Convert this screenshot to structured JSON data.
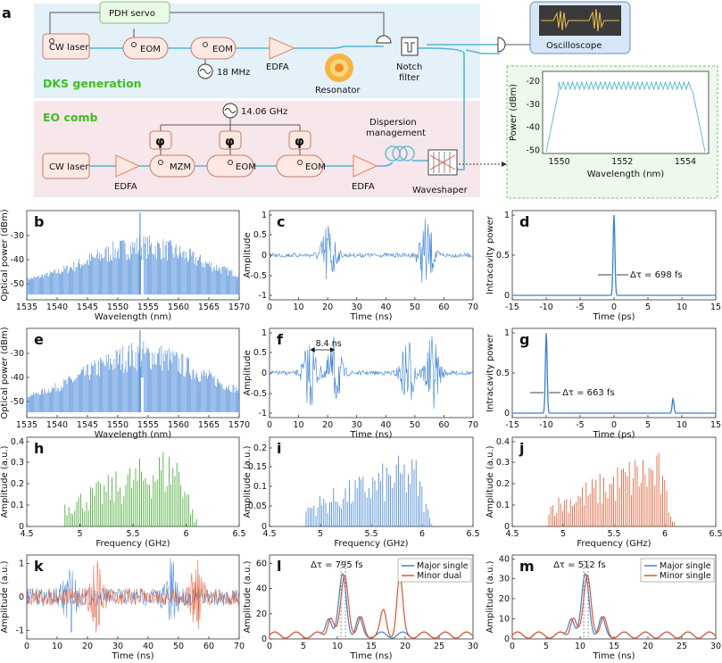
{
  "figure": {
    "panel_a": {
      "letter": "a",
      "dks": {
        "title": "DKS generation",
        "pdh_servo": "PDH servo",
        "cw_laser": "CW laser",
        "eom1": "EOM",
        "eom2": "EOM",
        "rf_freq": "18 MHz",
        "edfa": "EDFA",
        "resonator": "Resonator",
        "notch_filter_1": "Notch",
        "notch_filter_2": "filter",
        "oscilloscope": "Oscilloscope"
      },
      "eo": {
        "title": "EO comb",
        "rf_freq": "14.06 GHz",
        "cw_laser": "CW laser",
        "edfa1": "EDFA",
        "mzm": "MZM",
        "eom1": "EOM",
        "eom2": "EOM",
        "edfa2": "EDFA",
        "phase_symbol": "φ",
        "dispersion_1": "Dispersion",
        "dispersion_2": "management",
        "waveshaper": "Waveshaper"
      },
      "inset": {
        "ylabel": "Power (dBm)",
        "xlabel": "Wavelength (nm)",
        "yticks": [
          "-20",
          "-30",
          "-40",
          "-50"
        ],
        "xticks": [
          "1550",
          "1552",
          "1554"
        ]
      }
    },
    "panels": {
      "b": {
        "letter": "b",
        "ylabel": "Optical power (dBm)",
        "xlabel": "Wavelength (nm)",
        "xticks": [
          "1535",
          "1540",
          "1545",
          "1550",
          "1555",
          "1560",
          "1565",
          "1570"
        ],
        "yticks": [
          "-30",
          "-40",
          "-50"
        ]
      },
      "c": {
        "letter": "c",
        "ylabel": "Amplitude",
        "xlabel": "Time (ns)",
        "xticks": [
          "0",
          "10",
          "20",
          "30",
          "40",
          "50",
          "60",
          "70"
        ],
        "yticks": [
          "1",
          "0.5",
          "0",
          "-0.5",
          "-1"
        ]
      },
      "d": {
        "letter": "d",
        "ylabel": "Intracavity power",
        "xlabel": "Time (ps)",
        "xticks": [
          "-15",
          "-10",
          "-5",
          "0",
          "5",
          "10",
          "15"
        ],
        "yticks": [
          "1",
          "0.5",
          "0"
        ],
        "annotation": "Δτ = 698 fs"
      },
      "e": {
        "letter": "e",
        "ylabel": "Optical power (dBm)",
        "xlabel": "Wavelength (nm)",
        "xticks": [
          "1535",
          "1540",
          "1545",
          "1550",
          "1555",
          "1560",
          "1565",
          "1570"
        ],
        "yticks": [
          "-30",
          "-40",
          "-50"
        ]
      },
      "f": {
        "letter": "f",
        "ylabel": "Amplitude",
        "xlabel": "Time (ns)",
        "xticks": [
          "0",
          "10",
          "20",
          "30",
          "40",
          "50",
          "60",
          "70"
        ],
        "yticks": [
          "1",
          "0.5",
          "0",
          "-0.5",
          "-1"
        ],
        "annotation": "8.4 ns"
      },
      "g": {
        "letter": "g",
        "ylabel": "Intracavity power",
        "xlabel": "Time (ps)",
        "xticks": [
          "-15",
          "-10",
          "-5",
          "0",
          "5",
          "10",
          "15"
        ],
        "yticks": [
          "1",
          "0.5",
          "0"
        ],
        "annotation": "Δτ = 663 fs"
      },
      "h": {
        "letter": "h",
        "ylabel": "Amplitude (a.u.)",
        "xlabel": "Frequency (GHz)",
        "xticks": [
          "4.5",
          "5",
          "5.5",
          "6",
          "6.5"
        ],
        "yticks": [
          "0.4",
          "0.3",
          "0.2",
          "0.1",
          "0"
        ]
      },
      "i": {
        "letter": "i",
        "ylabel": "Amplitude (a.u.)",
        "xlabel": "Frequency (GHz)",
        "xticks": [
          "4.5",
          "5",
          "5.5",
          "6",
          "6.5"
        ],
        "yticks": [
          "0.2",
          "0.15",
          "0.1",
          "0.05",
          "0"
        ]
      },
      "j": {
        "letter": "j",
        "ylabel": "Amplitude (a.u.)",
        "xlabel": "Frequency (GHz)",
        "xticks": [
          "4.5",
          "5",
          "5.5",
          "6",
          "6.5"
        ],
        "yticks": [
          "0.4",
          "0.3",
          "0.2",
          "0.1",
          "0"
        ]
      },
      "k": {
        "letter": "k",
        "ylabel": "Amplitude (a.u.)",
        "xlabel": "Time (ns)",
        "xticks": [
          "0",
          "10",
          "20",
          "30",
          "40",
          "50",
          "60",
          "70"
        ],
        "yticks": [
          "1",
          "0",
          "-1"
        ]
      },
      "l": {
        "letter": "l",
        "ylabel": "Amplitude (a.u.)",
        "xlabel": "Time (ns)",
        "xticks": [
          "0",
          "5",
          "10",
          "15",
          "20",
          "25",
          "30"
        ],
        "yticks": [
          "60",
          "40",
          "20",
          "0"
        ],
        "annotation": "Δτ = 795 fs",
        "legend": [
          "Major single",
          "Minor dual"
        ]
      },
      "m": {
        "letter": "m",
        "ylabel": "Amplitude (a.u.)",
        "xlabel": "Time (ns)",
        "xticks": [
          "0",
          "5",
          "10",
          "15",
          "20",
          "25",
          "30"
        ],
        "yticks": [
          "40",
          "30",
          "20",
          "10",
          "0"
        ],
        "annotation": "Δτ = 512 fs",
        "legend": [
          "Major single",
          "Minor single"
        ]
      }
    },
    "colors": {
      "blue": "#3a7fd6",
      "green": "#3da52a",
      "orange": "#e0552a",
      "fiber": "#54b4d4"
    }
  }
}
